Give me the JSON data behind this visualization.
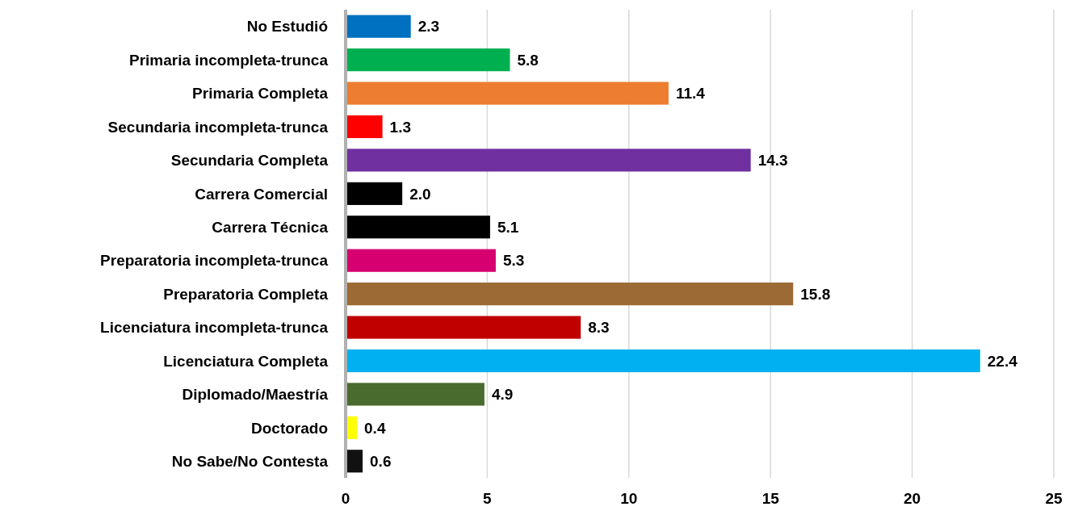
{
  "chart_data": {
    "type": "bar",
    "orientation": "horizontal",
    "categories": [
      "No Estudió",
      "Primaria incompleta-trunca",
      "Primaria Completa",
      "Secundaria incompleta-trunca",
      "Secundaria Completa",
      "Carrera Comercial",
      "Carrera Técnica",
      "Preparatoria incompleta-trunca",
      "Preparatoria Completa",
      "Licenciatura incompleta-trunca",
      "Licenciatura Completa",
      "Diplomado/Maestría",
      "Doctorado",
      "No Sabe/No Contesta"
    ],
    "values": [
      2.3,
      5.8,
      11.4,
      1.3,
      14.3,
      2.0,
      5.1,
      5.3,
      15.8,
      8.3,
      22.4,
      4.9,
      0.4,
      0.6
    ],
    "value_labels": [
      "2.3",
      "5.8",
      "11.4",
      "1.3",
      "14.3",
      "2.0",
      "5.1",
      "5.3",
      "15.8",
      "8.3",
      "22.4",
      "4.9",
      "0.4",
      "0.6"
    ],
    "colors": [
      "#0070c0",
      "#00b050",
      "#ed7d31",
      "#ff0000",
      "#7030a0",
      "#000000",
      "#000000",
      "#d60070",
      "#9c6a35",
      "#c00000",
      "#00b0f0",
      "#4a6b2e",
      "#ffff00",
      "#111111"
    ],
    "xlim": [
      0,
      25
    ],
    "xticks": [
      0,
      5,
      10,
      15,
      20,
      25
    ],
    "grid": "x"
  }
}
